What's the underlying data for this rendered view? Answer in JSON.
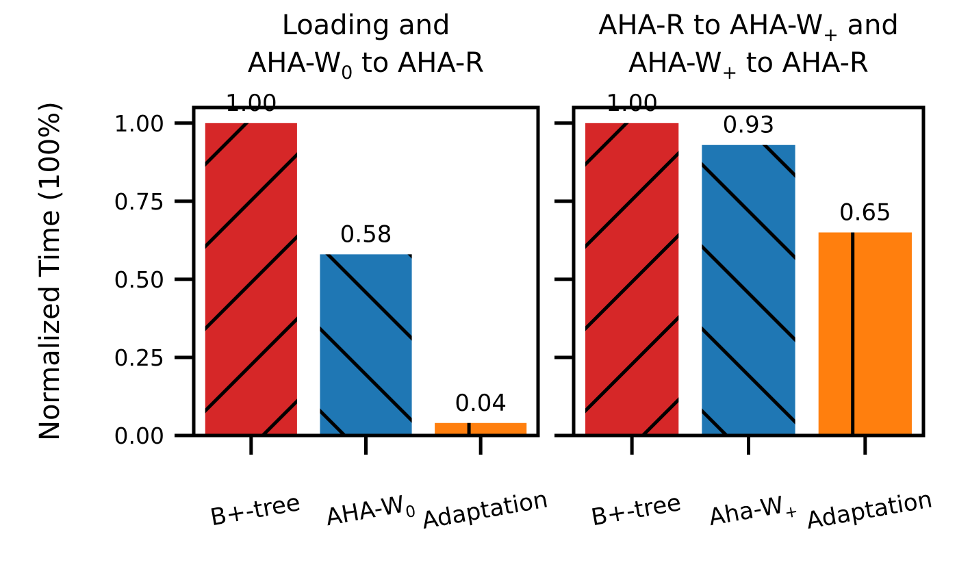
{
  "ylabel": "Normalized Time (100%)",
  "y_tick_labels": [
    "0.00",
    "0.25",
    "0.50",
    "0.75",
    "1.00"
  ],
  "colors": {
    "btree": "#d62728",
    "aha_w": "#1f77b4",
    "adaptation": "#ff7f0e",
    "hatch": "#000000",
    "frame": "#000000"
  },
  "chart_data": [
    {
      "type": "bar",
      "title_lines": [
        {
          "text": "Loading and"
        },
        {
          "text": "AHA-W",
          "sub": "0",
          "tail": " to AHA-R"
        }
      ],
      "categories": [
        {
          "text": "B+-tree"
        },
        {
          "text": "AHA-W",
          "sub": "0"
        },
        {
          "text": "Adaptation"
        }
      ],
      "values": [
        1.0,
        0.58,
        0.04
      ],
      "value_labels": [
        "1.00",
        "0.58",
        "0.04"
      ],
      "hatches": [
        "/",
        "\\",
        "|"
      ],
      "ylim": [
        0,
        1.05
      ],
      "yticks": [
        0,
        0.25,
        0.5,
        0.75,
        1.0
      ],
      "grid": false
    },
    {
      "type": "bar",
      "title_lines": [
        {
          "text": "AHA-R to AHA-W",
          "sub": "+",
          "tail": " and"
        },
        {
          "text": "AHA-W",
          "sub": "+",
          "tail": " to AHA-R"
        }
      ],
      "categories": [
        {
          "text": "B+-tree"
        },
        {
          "text": "Aha-W",
          "sub": "+"
        },
        {
          "text": "Adaptation"
        }
      ],
      "values": [
        1.0,
        0.93,
        0.65
      ],
      "value_labels": [
        "1.00",
        "0.93",
        "0.65"
      ],
      "hatches": [
        "/",
        "\\",
        "|"
      ],
      "ylim": [
        0,
        1.05
      ],
      "yticks": [
        0,
        0.25,
        0.5,
        0.75,
        1.0
      ],
      "grid": false
    }
  ]
}
